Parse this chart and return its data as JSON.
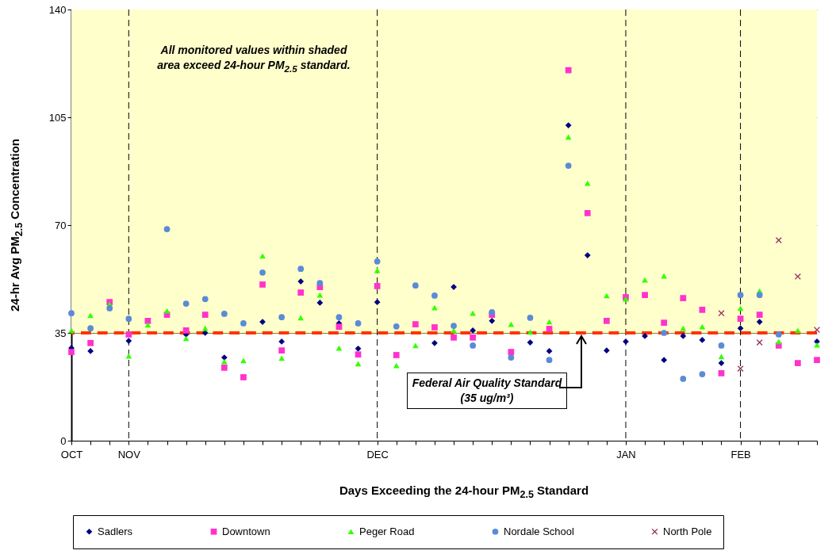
{
  "chart_data": {
    "type": "scatter",
    "xlabel": "Days Exceeding the 24-hour PM$_{2.5}$ Standard",
    "ylabel": "24-hr Avg PM$_{2.5}$ Concentration",
    "categories": [
      "OCT",
      null,
      null,
      "NOV",
      null,
      null,
      null,
      null,
      null,
      null,
      null,
      null,
      null,
      null,
      null,
      null,
      "DEC",
      null,
      null,
      null,
      null,
      null,
      null,
      null,
      null,
      null,
      null,
      null,
      null,
      "JAN",
      null,
      null,
      null,
      null,
      null,
      "FEB",
      null,
      null,
      null,
      null
    ],
    "series": [
      {
        "name": "Sadlers",
        "color": "#000080",
        "marker": "diamond",
        "values": [
          30.1,
          29.1,
          null,
          32.4,
          null,
          null,
          34.5,
          35,
          27,
          null,
          38.6,
          32.2,
          51.7,
          44.8,
          38.1,
          29.9,
          45,
          null,
          null,
          31.7,
          49.9,
          35.8,
          38.9,
          null,
          31.9,
          29.1,
          102.4,
          60.2,
          29.3,
          32.2,
          34,
          26.2,
          34,
          32.7,
          25.2,
          36.5,
          38.6,
          null,
          null,
          32.2
        ]
      },
      {
        "name": "Downtown",
        "color": "#ff33cc",
        "marker": "square",
        "values": [
          28.8,
          31.7,
          45,
          34.5,
          38.9,
          40.9,
          35.8,
          40.9,
          23.7,
          20.6,
          50.7,
          29.3,
          48.1,
          49.9,
          37,
          28,
          50.2,
          27.8,
          37.8,
          36.8,
          33.5,
          33.5,
          40.9,
          28.8,
          null,
          36.3,
          120.3,
          73.9,
          38.9,
          46.6,
          47.3,
          38.3,
          46.3,
          42.5,
          21.9,
          39.6,
          40.9,
          30.9,
          25.2,
          26.2
        ]
      },
      {
        "name": "Peger Road",
        "color": "#33ff00",
        "marker": "triangle",
        "values": [
          35.8,
          40.7,
          44.3,
          27.5,
          37.6,
          42.2,
          33.2,
          36.5,
          25.7,
          26,
          60,
          26.8,
          39.9,
          47.3,
          30.1,
          25,
          55.3,
          24.4,
          30.9,
          43.2,
          35.8,
          41.4,
          null,
          37.8,
          35.3,
          38.6,
          98.6,
          83.6,
          47.1,
          46,
          52.2,
          53.5,
          36.5,
          37,
          27.3,
          43,
          48.6,
          32.2,
          35.8,
          31.1
        ]
      },
      {
        "name": "Nordale School",
        "color": "#5b8bd6",
        "marker": "circle",
        "values": [
          41.4,
          36.5,
          43,
          39.6,
          null,
          68.7,
          44.5,
          46,
          41.2,
          38.1,
          54.6,
          40.1,
          55.8,
          51.2,
          40.1,
          38.1,
          58.2,
          37.1,
          50.4,
          47.1,
          37.3,
          30.9,
          41.7,
          27,
          39.9,
          26.2,
          89.3,
          null,
          null,
          null,
          null,
          35,
          20.1,
          21.6,
          30.9,
          47.3,
          47.3,
          34.5,
          null,
          null
        ]
      },
      {
        "name": "North Pole",
        "color": "#993366",
        "marker": "cross",
        "values": [
          null,
          null,
          null,
          null,
          null,
          null,
          null,
          null,
          null,
          null,
          null,
          null,
          null,
          null,
          null,
          null,
          null,
          null,
          null,
          null,
          null,
          null,
          null,
          null,
          null,
          null,
          null,
          null,
          null,
          null,
          null,
          null,
          null,
          null,
          41.4,
          23.4,
          31.9,
          65.1,
          53.3,
          36
        ]
      }
    ],
    "ylim": [
      0,
      140
    ],
    "yticks": [
      0,
      35,
      70,
      105,
      140
    ],
    "grid": "y",
    "legend": "bottom",
    "bands": [
      {
        "axis": "y",
        "from": 35,
        "to": 140,
        "label": "All monitored values within shaded area exceed 24-hour PM$_{2.5}$ standard.",
        "color": "#ffffcc"
      }
    ],
    "ref_lines": [
      {
        "axis": "y",
        "value": 35,
        "label": "Federal Air Quality Standard (35 ug/m³)",
        "color": "#ff3300",
        "line_style": "dashed"
      },
      {
        "axis": "x",
        "value": "NOV",
        "color": "#000000",
        "line_style": "dashed"
      },
      {
        "axis": "x",
        "value": "DEC",
        "color": "#000000",
        "line_style": "dashed"
      },
      {
        "axis": "x",
        "value": "JAN",
        "color": "#000000",
        "line_style": "dashed"
      },
      {
        "axis": "x",
        "value": "FEB",
        "color": "#000000",
        "line_style": "dashed"
      }
    ]
  }
}
